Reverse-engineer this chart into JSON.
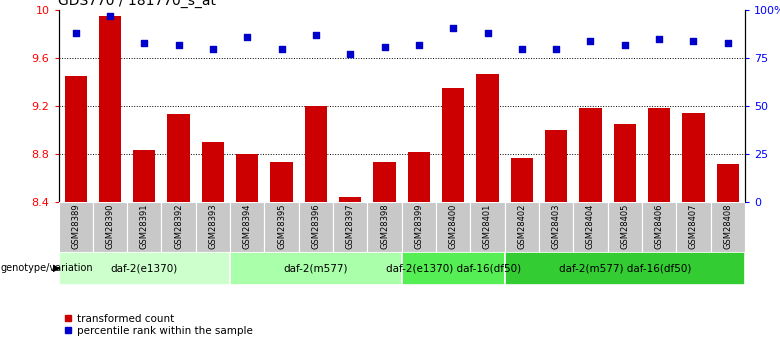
{
  "title": "GDS770 / 181770_s_at",
  "samples": [
    "GSM28389",
    "GSM28390",
    "GSM28391",
    "GSM28392",
    "GSM28393",
    "GSM28394",
    "GSM28395",
    "GSM28396",
    "GSM28397",
    "GSM28398",
    "GSM28399",
    "GSM28400",
    "GSM28401",
    "GSM28402",
    "GSM28403",
    "GSM28404",
    "GSM28405",
    "GSM28406",
    "GSM28407",
    "GSM28408"
  ],
  "bar_values": [
    9.45,
    9.95,
    8.83,
    9.13,
    8.9,
    8.8,
    8.73,
    9.2,
    8.44,
    8.73,
    8.82,
    9.35,
    9.47,
    8.77,
    9.0,
    9.18,
    9.05,
    9.18,
    9.14,
    8.72
  ],
  "percentile_values": [
    88,
    97,
    83,
    82,
    80,
    86,
    80,
    87,
    77,
    81,
    82,
    91,
    88,
    80,
    80,
    84,
    82,
    85,
    84,
    83
  ],
  "ylim_left": [
    8.4,
    10.0
  ],
  "ylim_right": [
    0,
    100
  ],
  "yticks_left": [
    8.4,
    8.8,
    9.2,
    9.6,
    10.0
  ],
  "ytick_labels_left": [
    "8.4",
    "8.8",
    "9.2",
    "9.6",
    "10"
  ],
  "yticks_right": [
    0,
    25,
    50,
    75,
    100
  ],
  "ytick_labels_right": [
    "0",
    "25",
    "50",
    "75",
    "100%"
  ],
  "hlines": [
    8.8,
    9.2,
    9.6
  ],
  "bar_color": "#cc0000",
  "dot_color": "#0000cc",
  "background_color": "#ffffff",
  "genotype_groups": [
    {
      "label": "daf-2(e1370)",
      "start": 0,
      "end": 5,
      "color": "#ccffcc"
    },
    {
      "label": "daf-2(m577)",
      "start": 5,
      "end": 10,
      "color": "#aaffaa"
    },
    {
      "label": "daf-2(e1370) daf-16(df50)",
      "start": 10,
      "end": 13,
      "color": "#55ee55"
    },
    {
      "label": "daf-2(m577) daf-16(df50)",
      "start": 13,
      "end": 20,
      "color": "#33cc33"
    }
  ],
  "genotype_label": "genotype/variation",
  "legend_bar_label": "transformed count",
  "legend_dot_label": "percentile rank within the sample",
  "n_samples": 20
}
